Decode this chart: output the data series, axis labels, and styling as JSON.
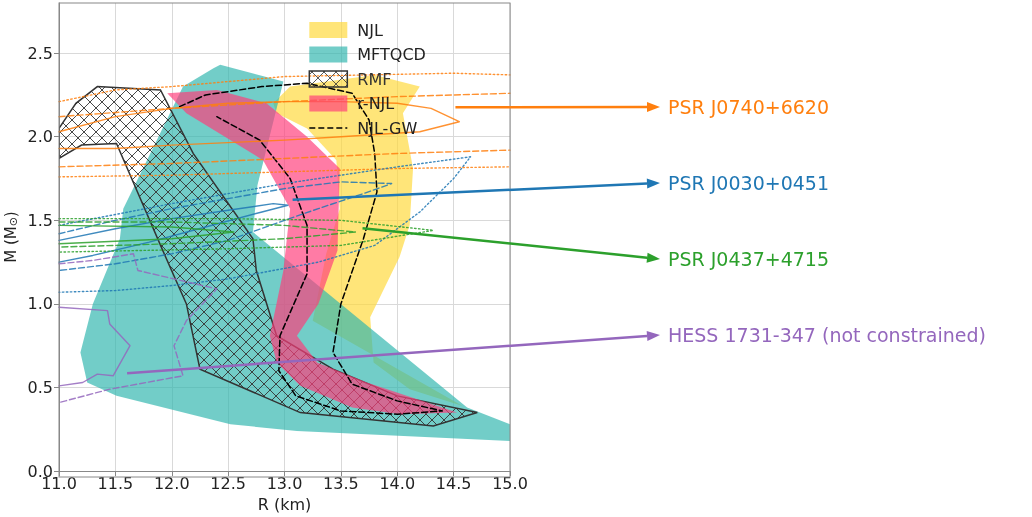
{
  "chart_data": {
    "type": "line",
    "xlabel": "R (km)",
    "ylabel": "M (M$_{⊙}$)",
    "xlim": [
      11,
      15
    ],
    "ylim": [
      0,
      2.8
    ],
    "xticks": [
      {
        "value": 11,
        "label": "11.0"
      },
      {
        "value": 11.5,
        "label": "11.5"
      },
      {
        "value": 12,
        "label": "12.0"
      },
      {
        "value": 12.5,
        "label": "12.5"
      },
      {
        "value": 13,
        "label": "13.0"
      },
      {
        "value": 13.5,
        "label": "13.5"
      },
      {
        "value": 14,
        "label": "14.0"
      },
      {
        "value": 14.5,
        "label": "14.5"
      },
      {
        "value": 15,
        "label": "15.0"
      }
    ],
    "yticks": [
      {
        "value": 0,
        "label": "0.0"
      },
      {
        "value": 0.5,
        "label": "0.5"
      },
      {
        "value": 1,
        "label": "1.0"
      },
      {
        "value": 1.5,
        "label": "1.5"
      },
      {
        "value": 2,
        "label": "2.0"
      },
      {
        "value": 2.5,
        "label": "2.5"
      }
    ],
    "grid": true,
    "legend": "top right",
    "marker": "none",
    "series": [
      {
        "name": "NJL",
        "type": "area",
        "color": "#ffd83a",
        "x": [
          12.9,
          13.05,
          null,
          13.8,
          14.2,
          14.05,
          14.14,
          14.11,
          14.02,
          13.76,
          13.79,
          14.11,
          14.58,
          null,
          null,
          null,
          null,
          13.25,
          13.37,
          13.49,
          13.46,
          13.2,
          12.93
        ],
        "values": [
          2.2,
          2.3,
          null,
          2.37,
          2.3,
          2.14,
          1.81,
          1.47,
          1.28,
          0.92,
          0.65,
          0.49,
          0.39,
          null,
          null,
          null,
          null,
          0.9,
          1.3,
          1.57,
          1.86,
          2.05,
          2.14
        ]
      },
      {
        "name": "MFTQCD",
        "type": "area",
        "color": "#2fb5ae",
        "x": [
          12.37,
          12.43,
          12.99,
          12.76,
          12.72,
          null,
          null,
          null,
          14.62,
          15,
          15,
          13.11,
          12.52,
          11.51,
          11.25,
          11.19,
          11.3,
          11.54,
          11.57,
          null,
          null,
          12.1
        ],
        "values": [
          2.41,
          2.43,
          2.33,
          1.71,
          1.43,
          null,
          null,
          null,
          0.38,
          0.28,
          0.18,
          0.24,
          0.28,
          0.45,
          0.53,
          0.71,
          1.0,
          1.39,
          1.57,
          null,
          null,
          2.3
        ]
      },
      {
        "name": "RMF",
        "type": "area",
        "color": "#333333",
        "x": [
          11,
          11,
          11.15,
          11.34,
          11.9,
          12.19,
          12.72,
          12.75,
          12.93,
          13.43,
          14,
          14.71,
          14.32,
          13.14,
          12.25,
          12.13,
          11.92,
          11.51,
          11.2
        ],
        "values": [
          1.87,
          2.05,
          2.2,
          2.3,
          2.28,
          1.9,
          1.39,
          1.2,
          0.81,
          0.61,
          0.45,
          0.35,
          0.27,
          0.35,
          0.61,
          1.0,
          1.32,
          1.96,
          1.95
        ]
      },
      {
        "name": "r-NJL",
        "type": "area",
        "color": "#ff3d7a",
        "x": [
          11.96,
          12.4,
          12.84,
          13.2,
          13.49,
          13.47,
          13.3,
          13.11,
          13.29,
          13.73,
          14.53,
          14.02,
          13.6,
          13.14,
          12.93,
          12.87,
          12.99,
          13.05,
          12.81,
          12.13
        ],
        "values": [
          2.26,
          2.28,
          2.2,
          2.0,
          1.81,
          1.32,
          1.0,
          0.81,
          0.65,
          0.53,
          0.35,
          0.34,
          0.38,
          0.51,
          0.65,
          0.81,
          1.2,
          1.57,
          1.86,
          2.14
        ]
      },
      {
        "name": "NJL-GW",
        "type": "line",
        "color": "#000000",
        "line_style": "dashed",
        "x": [
          12.07,
          12.3,
          12.8,
          13.2,
          13.6,
          13.75,
          13.8,
          13.82,
          13.7,
          13.5,
          13.43,
          13.6,
          14,
          14.4,
          14,
          13.5,
          13.1,
          12.95,
          12.96,
          13.2,
          13.2,
          13.05,
          12.78,
          12.4
        ],
        "values": [
          2.18,
          2.25,
          2.3,
          2.32,
          2.26,
          2.1,
          1.9,
          1.67,
          1.39,
          1.0,
          0.71,
          0.52,
          0.42,
          0.36,
          0.34,
          0.36,
          0.45,
          0.6,
          0.81,
          1.18,
          1.47,
          1.75,
          1.98,
          2.12
        ]
      },
      {
        "type": "line",
        "color": "#ff7f0e",
        "line_style": "solid",
        "x": [
          11,
          11.5,
          12,
          12.5,
          13,
          13.5,
          14,
          14.3,
          14.55,
          14.2,
          13.5,
          13,
          12,
          11.5,
          11
        ],
        "values": [
          2.03,
          2.12,
          2.17,
          2.2,
          2.21,
          2.21,
          2.2,
          2.17,
          2.09,
          2.03,
          2.0,
          1.98,
          1.95,
          1.93,
          1.93
        ]
      },
      {
        "type": "line",
        "color": "#ff7f0e",
        "line_style": "dashed",
        "x": [
          11,
          12,
          13,
          14,
          15,
          null,
          11,
          12,
          13,
          14,
          15
        ],
        "values": [
          2.12,
          2.17,
          2.21,
          2.24,
          2.26,
          null,
          1.82,
          1.84,
          1.87,
          1.9,
          1.92
        ]
      },
      {
        "type": "line",
        "color": "#ff7f0e",
        "line_style": "dotted",
        "x": [
          11,
          11.5,
          12,
          12.5,
          13,
          14.5,
          15,
          null,
          11,
          12,
          13,
          14,
          15
        ],
        "values": [
          2.21,
          2.28,
          2.3,
          2.33,
          2.36,
          2.38,
          2.37,
          null,
          1.76,
          1.77,
          1.79,
          1.81,
          1.82
        ]
      },
      {
        "type": "line",
        "color": "#1f77b4",
        "line_style": "solid",
        "x": [
          11,
          11.5,
          12,
          12.5,
          12.9,
          13.03,
          12.8,
          12.3,
          11.8,
          11.3,
          11
        ],
        "values": [
          1.38,
          1.45,
          1.51,
          1.56,
          1.6,
          1.59,
          1.55,
          1.46,
          1.37,
          1.29,
          1.25
        ]
      },
      {
        "type": "line",
        "color": "#1f77b4",
        "line_style": "dashed",
        "x": [
          11,
          11.5,
          12,
          12.5,
          13,
          13.5,
          13.95,
          13.7,
          13.3,
          13,
          12.5,
          12,
          11.5,
          11
        ],
        "values": [
          1.42,
          1.5,
          1.57,
          1.63,
          1.69,
          1.73,
          1.72,
          1.66,
          1.57,
          1.5,
          1.38,
          1.3,
          1.24,
          1.2
        ]
      },
      {
        "type": "line",
        "color": "#1f77b4",
        "line_style": "dotted",
        "x": [
          11,
          12,
          13,
          14,
          14.65,
          14.5,
          14.2,
          13.8,
          13.3,
          12.5,
          12,
          11.5,
          11
        ],
        "values": [
          1.47,
          1.6,
          1.72,
          1.82,
          1.88,
          1.75,
          1.55,
          1.35,
          1.25,
          1.15,
          1.11,
          1.08,
          1.07
        ]
      },
      {
        "type": "line",
        "color": "#2ca02c",
        "line_style": "solid",
        "x": [
          11,
          12,
          12.55,
          12,
          11
        ],
        "values": [
          1.47,
          1.46,
          1.43,
          1.39,
          1.36
        ]
      },
      {
        "type": "line",
        "color": "#2ca02c",
        "line_style": "dashed",
        "x": [
          11,
          12,
          13,
          13.63,
          13,
          12,
          11
        ],
        "values": [
          1.49,
          1.49,
          1.47,
          1.43,
          1.39,
          1.36,
          1.34
        ]
      },
      {
        "type": "line",
        "color": "#2ca02c",
        "line_style": "dotted",
        "x": [
          11,
          12.5,
          13.5,
          14.32,
          13.5,
          12.5,
          11
        ],
        "values": [
          1.51,
          1.51,
          1.5,
          1.44,
          1.35,
          1.33,
          1.31
        ]
      },
      {
        "type": "line",
        "color": "#9467bd",
        "line_style": "solid",
        "x": [
          11,
          11.43,
          11.45,
          11.63,
          11.48,
          11.34,
          11.21,
          11
        ],
        "values": [
          0.98,
          0.96,
          0.88,
          0.75,
          0.57,
          0.58,
          0.53,
          0.51
        ]
      },
      {
        "type": "line",
        "color": "#9467bd",
        "line_style": "dashed",
        "x": [
          11,
          11.3,
          11.66,
          11.7,
          12.4,
          12.13,
          12.02,
          12.1,
          11.45,
          11
        ],
        "values": [
          1.24,
          1.26,
          1.3,
          1.2,
          1.09,
          0.9,
          0.75,
          0.57,
          0.49,
          0.41
        ]
      }
    ],
    "annotations": [
      "PSR J0740+6620",
      "PSR J0030+0451",
      "PSR J0437+4715",
      "HESS 1731-347 (not constrained)"
    ]
  }
}
